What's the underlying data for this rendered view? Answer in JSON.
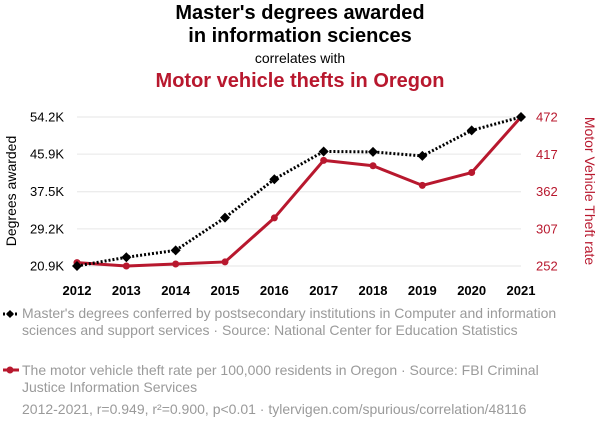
{
  "header": {
    "title_line1": "Master's degrees awarded",
    "title_line2": "in information sciences",
    "subtitle": "correlates with",
    "title_b": "Motor vehicle thefts in Oregon"
  },
  "legend": {
    "series_a": "Master's degrees conferred by postsecondary institutions in Computer and information sciences and support services · Source: National Center for Education Statistics",
    "series_b": "The motor vehicle theft rate per 100,000 residents in Oregon · Source: FBI Criminal Justice Information Services"
  },
  "footer": "2012-2021, r=0.949, r²=0.900, p<0.01 · tylervigen.com/spurious/correlation/48116",
  "colors": {
    "series_a": "#000000",
    "series_b": "#b8182e",
    "grid": "#e6e6e6"
  },
  "chart_data": {
    "type": "line",
    "x": [
      "2012",
      "2013",
      "2014",
      "2015",
      "2016",
      "2017",
      "2018",
      "2019",
      "2020",
      "2021"
    ],
    "series": [
      {
        "name": "Degrees awarded",
        "axis": "left",
        "style": "dotted",
        "marker": "diamond",
        "values": [
          20900,
          22850,
          24400,
          31700,
          40300,
          46500,
          46400,
          45500,
          51200,
          54200
        ]
      },
      {
        "name": "Motor Vehicle Theft rate",
        "axis": "right",
        "style": "solid",
        "marker": "circle",
        "values": [
          257,
          252,
          255,
          258,
          323,
          408,
          400,
          371,
          390,
          472
        ]
      }
    ],
    "ylabel_left": "Degrees awarded",
    "ylabel_right": "Motor Vehicle Theft rate",
    "yticks_left": [
      "20.9K",
      "29.2K",
      "37.5K",
      "45.9K",
      "54.2K"
    ],
    "yticks_left_values": [
      20900,
      29200,
      37500,
      45900,
      54200
    ],
    "ylim_left": [
      20900,
      54200
    ],
    "yticks_right": [
      "252",
      "307",
      "362",
      "417",
      "472"
    ],
    "yticks_right_values": [
      252,
      307,
      362,
      417,
      472
    ],
    "ylim_right": [
      252,
      472
    ],
    "grid": true
  }
}
